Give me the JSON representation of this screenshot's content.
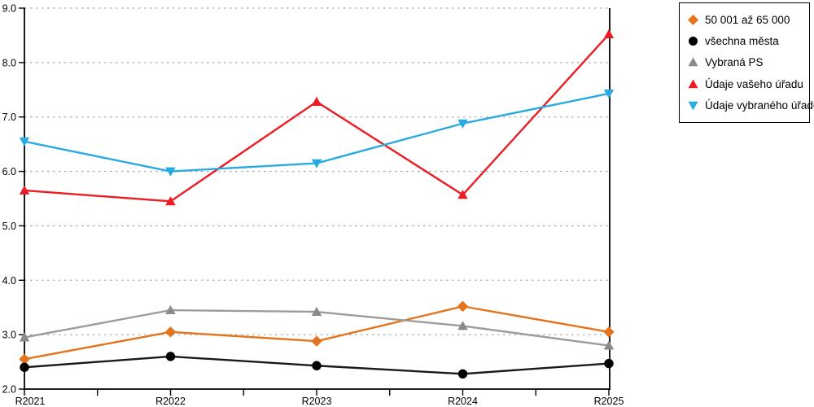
{
  "chart_data": {
    "type": "line",
    "categories": [
      "R2021",
      "R2022",
      "R2023",
      "R2024",
      "R2025"
    ],
    "series": [
      {
        "name": "50 001 až 65 000",
        "marker": "diamond",
        "color": "#E4731B",
        "line_color": "#E4731B",
        "values": [
          2.55,
          3.05,
          2.88,
          3.52,
          3.05
        ]
      },
      {
        "name": "všechna města",
        "marker": "circle",
        "color": "#000000",
        "line_color": "#1A1A1A",
        "values": [
          2.4,
          2.6,
          2.43,
          2.28,
          2.47
        ]
      },
      {
        "name": "Vybraná PS",
        "marker": "triangle-up",
        "color": "#8A8A8A",
        "line_color": "#9C9C9C",
        "values": [
          2.95,
          3.45,
          3.42,
          3.16,
          2.8
        ]
      },
      {
        "name": "Údaje vašeho úřadu",
        "marker": "triangle-up",
        "color": "#EC1C24",
        "line_color": "#EC1C24",
        "values": [
          5.65,
          5.45,
          7.28,
          5.57,
          8.52
        ]
      },
      {
        "name": "Údaje vybraného úřadu",
        "marker": "triangle-down",
        "color": "#29ABE2",
        "line_color": "#29ABE2",
        "values": [
          6.55,
          6.0,
          6.15,
          6.88,
          7.43
        ]
      }
    ],
    "title": "",
    "xlabel": "",
    "ylabel": "",
    "ylim": [
      2.0,
      9.0
    ],
    "ytick_step": 1.0,
    "ytick_labels": [
      "2.0",
      "3.0",
      "4.0",
      "5.0",
      "6.0",
      "7.0",
      "8.0",
      "9.0"
    ],
    "grid": "horizontal-dotted",
    "grid_color": "#ABABAB",
    "axis_color": "#000000",
    "legend_position": "top-right",
    "legend_border_color": "#000000"
  }
}
